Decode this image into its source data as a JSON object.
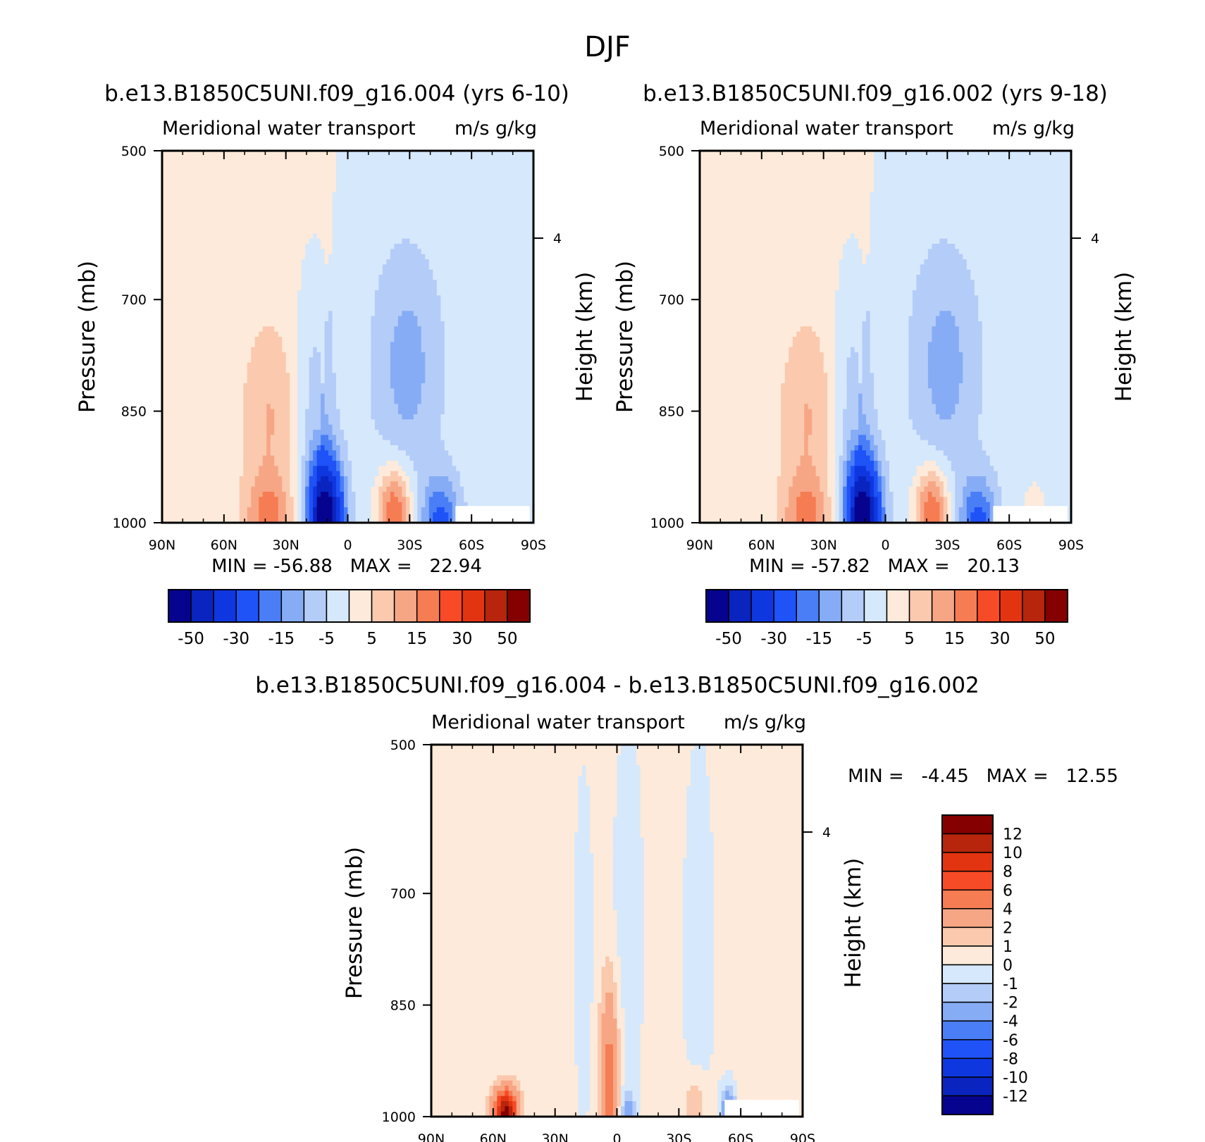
{
  "figure": {
    "title": "DJF"
  },
  "colors": {
    "cmap": [
      "#06048e",
      "#0a24c0",
      "#0f37e0",
      "#1f52f7",
      "#4a7ef7",
      "#86acf6",
      "#b4ccf8",
      "#d6e8fb",
      "#fdeada",
      "#fac9ae",
      "#f7a685",
      "#f67c53",
      "#f74a26",
      "#e33412",
      "#b6250c",
      "#850000"
    ]
  },
  "chart_data": [
    {
      "type": "contour",
      "id": "panel_left",
      "title": "b.e13.B1850C5UNI.f09_g16.004 (yrs 6-10)",
      "subtitle_left": "Meridional water transport",
      "subtitle_right": "m/s g/kg",
      "xlabel": "",
      "ylabel": "Pressure (mb)",
      "ylabel_right": "Height (km)",
      "x_ticks": [
        "90N",
        "60N",
        "30N",
        "0",
        "30S",
        "60S",
        "90S"
      ],
      "y_ticks": [
        "500",
        "700",
        "850",
        "1000"
      ],
      "right_ticks": [
        "4"
      ],
      "ylim": [
        500,
        1000
      ],
      "min": -56.88,
      "max": 22.94,
      "min_label": "MIN = -56.88   MAX =   22.94",
      "levels": [
        -60,
        -50,
        -40,
        -30,
        -20,
        -15,
        -10,
        -5,
        0,
        5,
        10,
        15,
        20,
        30,
        40,
        50,
        60
      ],
      "colorbar_labels": [
        "-50",
        "-30",
        "-15",
        "-5",
        "5",
        "15",
        "30",
        "50"
      ],
      "colorbar_orientation": "horizontal",
      "scale": 6.0
    },
    {
      "type": "contour",
      "id": "panel_right",
      "title": "b.e13.B1850C5UNI.f09_g16.002 (yrs 9-18)",
      "subtitle_left": "Meridional water transport",
      "subtitle_right": "m/s g/kg",
      "xlabel": "",
      "ylabel": "Pressure (mb)",
      "ylabel_right": "Height (km)",
      "x_ticks": [
        "90N",
        "60N",
        "30N",
        "0",
        "30S",
        "60S",
        "90S"
      ],
      "y_ticks": [
        "500",
        "700",
        "850",
        "1000"
      ],
      "right_ticks": [
        "4"
      ],
      "ylim": [
        500,
        1000
      ],
      "min": -57.82,
      "max": 20.13,
      "min_label": "MIN = -57.82   MAX =   20.13",
      "levels": [
        -60,
        -50,
        -40,
        -30,
        -20,
        -15,
        -10,
        -5,
        0,
        5,
        10,
        15,
        20,
        30,
        40,
        50,
        60
      ],
      "colorbar_labels": [
        "-50",
        "-30",
        "-15",
        "-5",
        "5",
        "15",
        "30",
        "50"
      ],
      "colorbar_orientation": "horizontal",
      "scale": 6.0
    },
    {
      "type": "contour",
      "id": "panel_diff",
      "title": "b.e13.B1850C5UNI.f09_g16.004 - b.e13.B1850C5UNI.f09_g16.002",
      "subtitle_left": "Meridional water transport",
      "subtitle_right": "m/s g/kg",
      "xlabel": "",
      "ylabel": "Pressure (mb)",
      "ylabel_right": "Height (km)",
      "x_ticks": [
        "90N",
        "60N",
        "30N",
        "0",
        "30S",
        "60S",
        "90S"
      ],
      "y_ticks": [
        "500",
        "700",
        "850",
        "1000"
      ],
      "right_ticks": [
        "4"
      ],
      "ylim": [
        500,
        1000
      ],
      "min": -4.45,
      "max": 12.55,
      "min_label": "MIN =   -4.45   MAX =   12.55",
      "levels": [
        -14,
        -12,
        -10,
        -8,
        -6,
        -4,
        -2,
        -1,
        0,
        1,
        2,
        4,
        6,
        8,
        10,
        12,
        14
      ],
      "colorbar_labels": [
        "12",
        "10",
        "8",
        "6",
        "4",
        "2",
        "1",
        "0",
        "-1",
        "-2",
        "-4",
        "-6",
        "-8",
        "-10",
        "-12"
      ],
      "colorbar_orientation": "vertical",
      "scale": 0.6
    }
  ]
}
